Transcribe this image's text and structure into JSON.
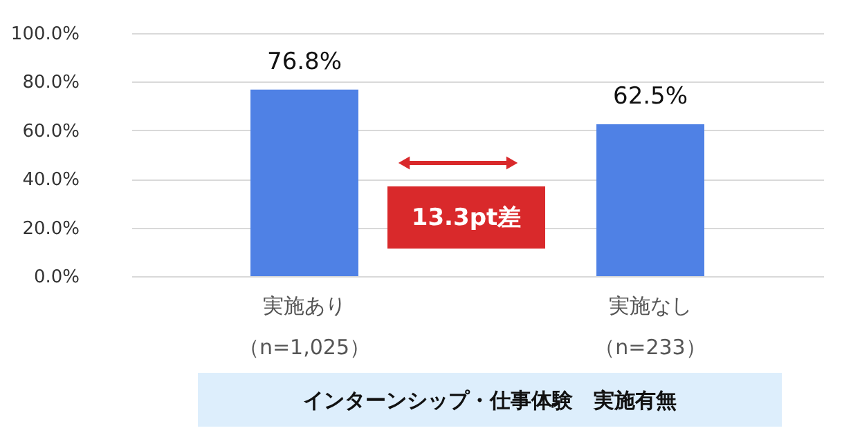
{
  "chart_data": {
    "type": "bar",
    "categories": [
      "実施あり（n=1,025）",
      "実施なし（n=233）"
    ],
    "values": [
      76.8,
      62.5
    ],
    "value_labels": [
      "76.8%",
      "62.5%"
    ],
    "color": "#4f81e5",
    "ylim": [
      0,
      100
    ],
    "yticks": [
      {
        "value": 0,
        "label": "0.0%"
      },
      {
        "value": 20,
        "label": "20.0%"
      },
      {
        "value": 40,
        "label": "40.0%"
      },
      {
        "value": 60,
        "label": "60.0%"
      },
      {
        "value": 80,
        "label": "80.0%"
      },
      {
        "value": 100,
        "label": "100.0%"
      }
    ],
    "grid": "y",
    "xlabel": "インターンシップ・仕事体験　実施有無",
    "annotations": [
      "13.3pt差"
    ]
  }
}
